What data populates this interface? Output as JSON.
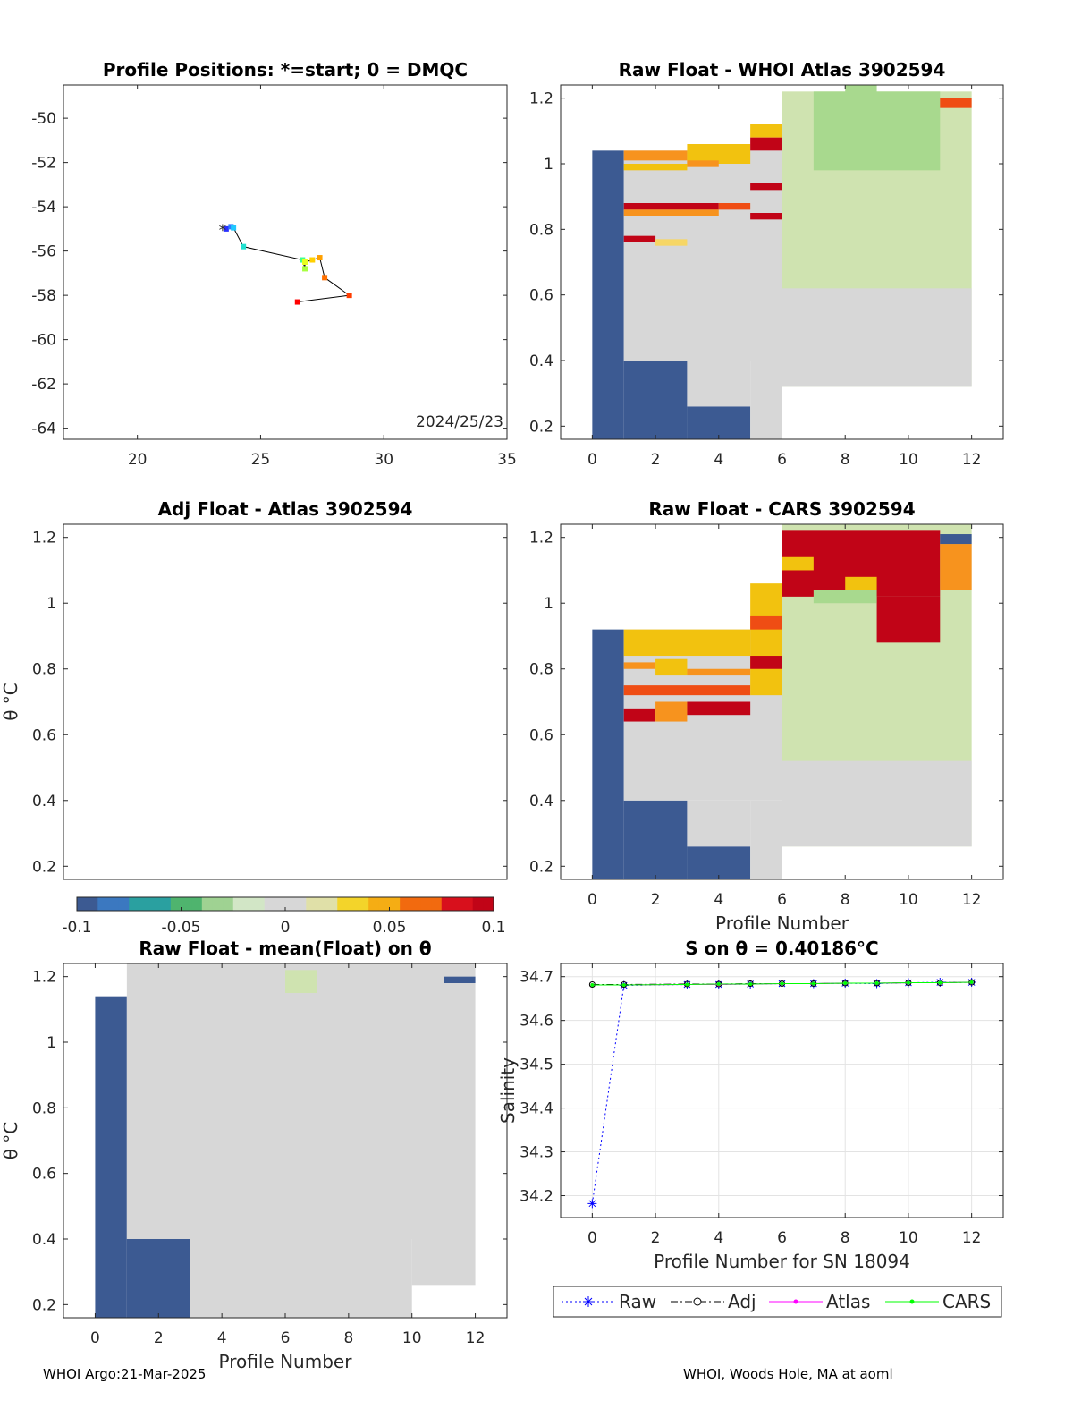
{
  "figure": {
    "footer_left": "WHOI Argo:21-Mar-2025",
    "footer_right": "WHOI, Woods Hole, MA at aoml"
  },
  "colors": {
    "land_blue": "#3c5a92",
    "neutral_gray": "#d7d7d7",
    "pale_green": "#cfe3b0",
    "green": "#a8d98e",
    "yellow": "#f2c20f",
    "light_yellow": "#f6d665",
    "orange": "#f7931e",
    "red_orange": "#ef4d14",
    "dark_red": "#c10417",
    "raw_blue": "#0000ff",
    "atlas_magenta": "#ff00ff",
    "cars_green": "#00ff00"
  },
  "chart_data": [
    {
      "id": "positions",
      "type": "scatter",
      "title": "Profile Positions: *=start; 0 = DMQC",
      "xlim": [
        17,
        35
      ],
      "ylim": [
        -64.5,
        -48.5
      ],
      "xticks": [
        "20",
        "25",
        "30",
        "35"
      ],
      "yticks": [
        "-50",
        "-52",
        "-54",
        "-56",
        "-58",
        "-60",
        "-62",
        "-64"
      ],
      "annotation": "2024/25/23",
      "lon": [
        23.6,
        23.8,
        23.9,
        24.3,
        26.7,
        26.8,
        26.8,
        27.1,
        27.4,
        27.6,
        28.6,
        26.5
      ],
      "lat": [
        -55.0,
        -54.9,
        -54.95,
        -55.8,
        -56.4,
        -56.8,
        -56.5,
        -56.4,
        -56.3,
        -57.2,
        -58.0,
        -58.3
      ],
      "colors": [
        "#2a30ff",
        "#2f7cff",
        "#20c8ff",
        "#20e0d0",
        "#40ff90",
        "#a8ff40",
        "#e8ff20",
        "#ffd000",
        "#ffa000",
        "#ff7000",
        "#ff3c00",
        "#ff0000"
      ],
      "start_marker": "*"
    },
    {
      "id": "raw_whoi",
      "type": "heatmap",
      "title": "Raw Float - WHOI Atlas  3902594",
      "xlim": [
        -1,
        13
      ],
      "ylim": [
        0.16,
        1.24
      ],
      "xticks": [
        "0",
        "2",
        "4",
        "6",
        "8",
        "10",
        "12"
      ],
      "yticks": [
        "0.2",
        "0.4",
        "0.6",
        "0.8",
        "1",
        "1.2"
      ],
      "bands": [
        {
          "x": [
            0,
            1
          ],
          "y": [
            0.16,
            1.04
          ],
          "c": "land_blue"
        },
        {
          "x": [
            1,
            3
          ],
          "y": [
            0.16,
            0.4
          ],
          "c": "land_blue"
        },
        {
          "x": [
            3,
            5
          ],
          "y": [
            0.16,
            0.26
          ],
          "c": "land_blue"
        },
        {
          "x": [
            1,
            6
          ],
          "y": [
            0.4,
            1.04
          ],
          "c": "neutral_gray"
        },
        {
          "x": [
            3,
            5
          ],
          "y": [
            0.26,
            0.4
          ],
          "c": "neutral_gray"
        },
        {
          "x": [
            5,
            6
          ],
          "y": [
            0.16,
            0.4
          ],
          "c": "neutral_gray"
        },
        {
          "x": [
            6,
            12
          ],
          "y": [
            0.32,
            1.22
          ],
          "c": "pale_green"
        },
        {
          "x": [
            6,
            12
          ],
          "y": [
            0.32,
            0.62
          ],
          "c": "neutral_gray"
        },
        {
          "x": [
            7,
            11
          ],
          "y": [
            0.98,
            1.22
          ],
          "c": "green"
        },
        {
          "x": [
            8,
            9
          ],
          "y": [
            1.06,
            1.24
          ],
          "c": "green"
        },
        {
          "x": [
            1,
            3
          ],
          "y": [
            1.01,
            1.04
          ],
          "c": "orange"
        },
        {
          "x": [
            1,
            3
          ],
          "y": [
            0.98,
            1.0
          ],
          "c": "yellow"
        },
        {
          "x": [
            3,
            5
          ],
          "y": [
            1.0,
            1.06
          ],
          "c": "yellow"
        },
        {
          "x": [
            3,
            4
          ],
          "y": [
            0.99,
            1.01
          ],
          "c": "orange"
        },
        {
          "x": [
            5,
            6
          ],
          "y": [
            1.08,
            1.12
          ],
          "c": "yellow"
        },
        {
          "x": [
            5,
            6
          ],
          "y": [
            1.04,
            1.08
          ],
          "c": "dark_red"
        },
        {
          "x": [
            5,
            6
          ],
          "y": [
            0.92,
            0.94
          ],
          "c": "dark_red"
        },
        {
          "x": [
            5,
            6
          ],
          "y": [
            0.83,
            0.85
          ],
          "c": "dark_red"
        },
        {
          "x": [
            1,
            4
          ],
          "y": [
            0.86,
            0.88
          ],
          "c": "dark_red"
        },
        {
          "x": [
            1,
            4
          ],
          "y": [
            0.84,
            0.86
          ],
          "c": "orange"
        },
        {
          "x": [
            4,
            5
          ],
          "y": [
            0.86,
            0.88
          ],
          "c": "red_orange"
        },
        {
          "x": [
            1,
            2
          ],
          "y": [
            0.76,
            0.78
          ],
          "c": "dark_red"
        },
        {
          "x": [
            2,
            3
          ],
          "y": [
            0.75,
            0.77
          ],
          "c": "light_yellow"
        },
        {
          "x": [
            11,
            12
          ],
          "y": [
            1.17,
            1.2
          ],
          "c": "red_orange"
        }
      ]
    },
    {
      "id": "adj_atlas",
      "type": "heatmap",
      "title": "Adj Float - Atlas  3902594",
      "ylabel": "θ °C",
      "ylim": [
        0.16,
        1.24
      ],
      "yticks": [
        "0.2",
        "0.4",
        "0.6",
        "0.8",
        "1",
        "1.2"
      ],
      "bands": []
    },
    {
      "id": "raw_cars",
      "type": "heatmap",
      "title": "Raw Float - CARS  3902594",
      "xlabel": "Profile Number",
      "xlim": [
        -1,
        13
      ],
      "ylim": [
        0.16,
        1.24
      ],
      "xticks": [
        "0",
        "2",
        "4",
        "6",
        "8",
        "10",
        "12"
      ],
      "yticks": [
        "0.2",
        "0.4",
        "0.6",
        "0.8",
        "1",
        "1.2"
      ],
      "bands": [
        {
          "x": [
            0,
            1
          ],
          "y": [
            0.16,
            0.92
          ],
          "c": "land_blue"
        },
        {
          "x": [
            1,
            3
          ],
          "y": [
            0.16,
            0.4
          ],
          "c": "land_blue"
        },
        {
          "x": [
            3,
            5
          ],
          "y": [
            0.16,
            0.26
          ],
          "c": "land_blue"
        },
        {
          "x": [
            1,
            6
          ],
          "y": [
            0.4,
            0.92
          ],
          "c": "neutral_gray"
        },
        {
          "x": [
            3,
            5
          ],
          "y": [
            0.26,
            0.4
          ],
          "c": "neutral_gray"
        },
        {
          "x": [
            5,
            6
          ],
          "y": [
            0.16,
            0.4
          ],
          "c": "neutral_gray"
        },
        {
          "x": [
            6,
            12
          ],
          "y": [
            0.26,
            1.24
          ],
          "c": "pale_green"
        },
        {
          "x": [
            6,
            12
          ],
          "y": [
            0.26,
            0.52
          ],
          "c": "neutral_gray"
        },
        {
          "x": [
            1,
            5
          ],
          "y": [
            0.84,
            0.92
          ],
          "c": "yellow"
        },
        {
          "x": [
            2,
            3
          ],
          "y": [
            0.78,
            0.83
          ],
          "c": "yellow"
        },
        {
          "x": [
            1,
            2
          ],
          "y": [
            0.8,
            0.82
          ],
          "c": "orange"
        },
        {
          "x": [
            3,
            5
          ],
          "y": [
            0.78,
            0.8
          ],
          "c": "orange"
        },
        {
          "x": [
            1,
            5
          ],
          "y": [
            0.72,
            0.75
          ],
          "c": "red_orange"
        },
        {
          "x": [
            1,
            2
          ],
          "y": [
            0.64,
            0.68
          ],
          "c": "dark_red"
        },
        {
          "x": [
            2,
            3
          ],
          "y": [
            0.64,
            0.7
          ],
          "c": "orange"
        },
        {
          "x": [
            3,
            5
          ],
          "y": [
            0.66,
            0.7
          ],
          "c": "dark_red"
        },
        {
          "x": [
            5,
            6
          ],
          "y": [
            0.72,
            1.06
          ],
          "c": "yellow"
        },
        {
          "x": [
            5,
            6
          ],
          "y": [
            0.8,
            0.84
          ],
          "c": "dark_red"
        },
        {
          "x": [
            5,
            6
          ],
          "y": [
            0.92,
            0.96
          ],
          "c": "red_orange"
        },
        {
          "x": [
            6,
            11
          ],
          "y": [
            1.02,
            1.22
          ],
          "c": "dark_red"
        },
        {
          "x": [
            6,
            7
          ],
          "y": [
            1.1,
            1.14
          ],
          "c": "yellow"
        },
        {
          "x": [
            8,
            9
          ],
          "y": [
            1.04,
            1.08
          ],
          "c": "yellow"
        },
        {
          "x": [
            9,
            11
          ],
          "y": [
            0.88,
            1.02
          ],
          "c": "dark_red"
        },
        {
          "x": [
            11,
            12
          ],
          "y": [
            1.04,
            1.18
          ],
          "c": "orange"
        },
        {
          "x": [
            11,
            12
          ],
          "y": [
            1.18,
            1.21
          ],
          "c": "land_blue"
        },
        {
          "x": [
            7,
            9
          ],
          "y": [
            1.0,
            1.04
          ],
          "c": "green"
        }
      ]
    },
    {
      "id": "raw_mean",
      "type": "heatmap",
      "title": "Raw Float - mean(Float) on θ",
      "xlabel": "Profile Number",
      "ylabel": "θ °C",
      "xlim": [
        -1,
        13
      ],
      "ylim": [
        0.16,
        1.24
      ],
      "xticks": [
        "0",
        "2",
        "4",
        "6",
        "8",
        "10",
        "12"
      ],
      "yticks": [
        "0.2",
        "0.4",
        "0.6",
        "0.8",
        "1",
        "1.2"
      ],
      "bands": [
        {
          "x": [
            0,
            1
          ],
          "y": [
            0.16,
            1.14
          ],
          "c": "land_blue"
        },
        {
          "x": [
            1,
            3
          ],
          "y": [
            0.16,
            0.4
          ],
          "c": "land_blue"
        },
        {
          "x": [
            3,
            5
          ],
          "y": [
            0.16,
            0.26
          ],
          "c": "land_blue"
        },
        {
          "x": [
            1,
            12
          ],
          "y": [
            0.4,
            1.24
          ],
          "c": "neutral_gray"
        },
        {
          "x": [
            3,
            10
          ],
          "y": [
            0.16,
            0.4
          ],
          "c": "neutral_gray"
        },
        {
          "x": [
            10,
            12
          ],
          "y": [
            0.26,
            0.4
          ],
          "c": "neutral_gray"
        },
        {
          "x": [
            6,
            7
          ],
          "y": [
            1.15,
            1.22
          ],
          "c": "pale_green"
        },
        {
          "x": [
            11,
            12
          ],
          "y": [
            1.18,
            1.2
          ],
          "c": "land_blue"
        }
      ]
    },
    {
      "id": "salinity",
      "type": "line",
      "title": "S on θ = 0.40186°C",
      "xlabel": "Profile Number for SN 18094",
      "ylabel": "Salinity",
      "xlim": [
        -1,
        13
      ],
      "ylim": [
        34.15,
        34.73
      ],
      "xticks": [
        "0",
        "2",
        "4",
        "6",
        "8",
        "10",
        "12"
      ],
      "yticks": [
        "34.2",
        "34.3",
        "34.4",
        "34.5",
        "34.6",
        "34.7"
      ],
      "x": [
        0,
        1,
        3,
        4,
        5,
        6,
        7,
        8,
        9,
        10,
        11,
        12
      ],
      "series": [
        {
          "name": "Raw",
          "values": [
            34.182,
            34.68,
            34.682,
            34.682,
            34.683,
            34.684,
            34.684,
            34.685,
            34.684,
            34.686,
            34.687,
            34.687
          ]
        },
        {
          "name": "Adj",
          "values": [
            34.682,
            34.682,
            34.683,
            34.683,
            34.684,
            34.684,
            34.684,
            34.685,
            34.685,
            34.686,
            34.686,
            34.687
          ]
        },
        {
          "name": "Atlas",
          "values": [
            34.681,
            34.681,
            34.682,
            34.682,
            34.683,
            34.684,
            34.684,
            34.685,
            34.685,
            34.686,
            34.686,
            34.687
          ]
        },
        {
          "name": "CARS",
          "values": [
            34.681,
            34.681,
            34.682,
            34.683,
            34.683,
            34.684,
            34.684,
            34.685,
            34.685,
            34.686,
            34.686,
            34.687
          ]
        }
      ],
      "legend": "bottom"
    }
  ],
  "colorbar": {
    "min": -0.1,
    "max": 0.1,
    "ticks": [
      "-0.1",
      "-0.05",
      "0",
      "0.05",
      "0.1"
    ]
  }
}
